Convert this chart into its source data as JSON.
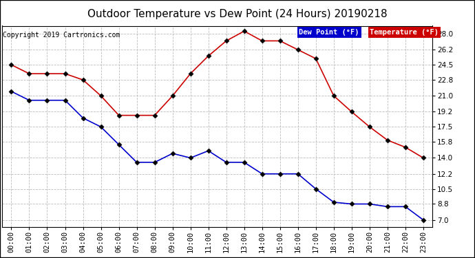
{
  "title": "Outdoor Temperature vs Dew Point (24 Hours) 20190218",
  "copyright": "Copyright 2019 Cartronics.com",
  "hours": [
    "00:00",
    "01:00",
    "02:00",
    "03:00",
    "04:00",
    "05:00",
    "06:00",
    "07:00",
    "08:00",
    "09:00",
    "10:00",
    "11:00",
    "12:00",
    "13:00",
    "14:00",
    "15:00",
    "16:00",
    "17:00",
    "18:00",
    "19:00",
    "20:00",
    "21:00",
    "22:00",
    "23:00"
  ],
  "temperature": [
    24.5,
    23.5,
    23.5,
    23.5,
    22.8,
    21.0,
    18.8,
    18.8,
    18.8,
    21.0,
    23.5,
    25.5,
    27.2,
    28.3,
    27.2,
    27.2,
    26.2,
    25.2,
    21.0,
    19.2,
    17.5,
    16.0,
    15.2,
    14.0
  ],
  "dew_point": [
    21.5,
    20.5,
    20.5,
    20.5,
    18.5,
    17.5,
    15.5,
    13.5,
    13.5,
    14.5,
    14.0,
    14.8,
    13.5,
    13.5,
    12.2,
    12.2,
    12.2,
    10.5,
    9.0,
    8.8,
    8.8,
    8.5,
    8.5,
    7.0
  ],
  "temp_color": "#cc0000",
  "dew_color": "#0000cc",
  "bg_color": "#ffffff",
  "plot_bg_color": "#ffffff",
  "grid_color": "#bbbbbb",
  "yticks": [
    7.0,
    8.8,
    10.5,
    12.2,
    14.0,
    15.8,
    17.5,
    19.2,
    21.0,
    22.8,
    24.5,
    26.2,
    28.0
  ],
  "ylim": [
    6.2,
    28.9
  ],
  "title_fontsize": 11,
  "axis_fontsize": 7.5,
  "copyright_fontsize": 7,
  "markersize": 3.5
}
